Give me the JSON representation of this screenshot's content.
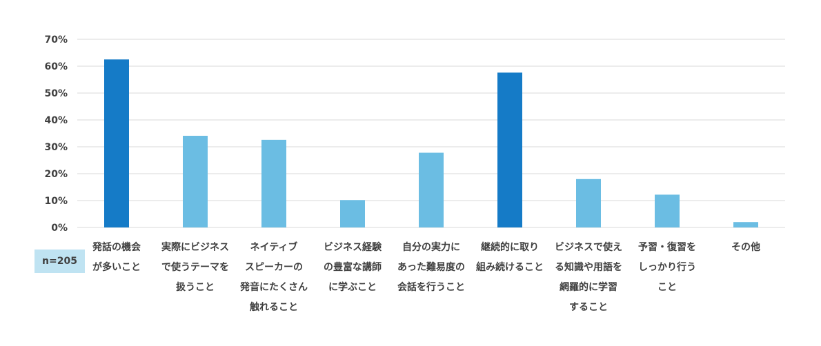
{
  "chart_data": {
    "type": "bar",
    "categories": [
      [
        "発話の機会",
        "が多いこと"
      ],
      [
        "実際にビジネス",
        "で使うテーマを",
        "扱うこと"
      ],
      [
        "ネイティブ",
        "スピーカーの",
        "発音にたくさん",
        "触れること"
      ],
      [
        "ビジネス経験",
        "の豊富な講師",
        "に学ぶこと"
      ],
      [
        "自分の実力に",
        "あった難易度の",
        "会話を行うこと"
      ],
      [
        "継続的に取り",
        "組み続けること"
      ],
      [
        "ビジネスで使え",
        "る知識や用語を",
        "網羅的に学習",
        "すること"
      ],
      [
        "予習・復習を",
        "しっかり行う",
        "こと"
      ],
      [
        "その他"
      ]
    ],
    "values": [
      62.5,
      34.1,
      32.6,
      10.2,
      27.8,
      57.6,
      18.0,
      12.2,
      2.0
    ],
    "highlight": [
      true,
      false,
      false,
      false,
      false,
      true,
      false,
      false,
      false
    ],
    "ylim": [
      0,
      70
    ],
    "yticks": [
      "0%",
      "10%",
      "20%",
      "30%",
      "40%",
      "50%",
      "60%",
      "70%"
    ],
    "grid": true,
    "colors": {
      "highlight": "#157bc7",
      "normal": "#6bbde3",
      "grid": "#d9d9d9",
      "text": "#404040"
    }
  },
  "note": {
    "label": "n=205"
  }
}
